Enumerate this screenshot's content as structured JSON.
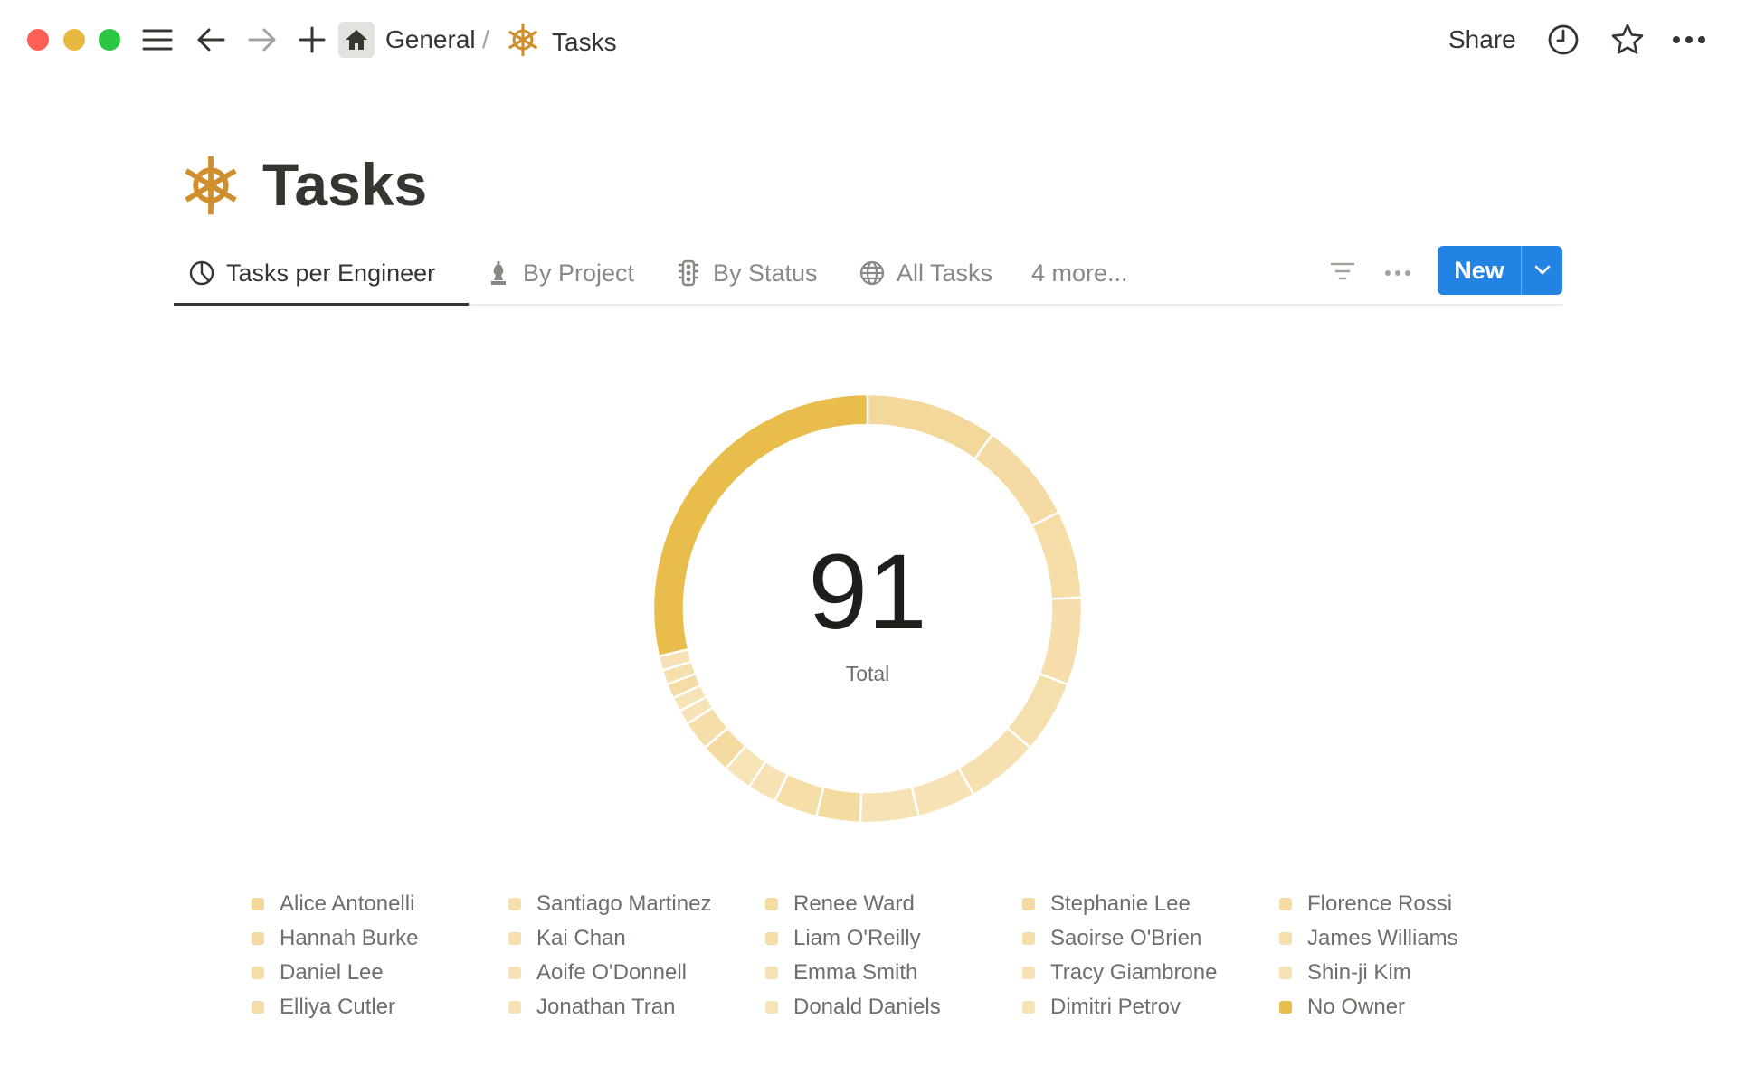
{
  "window": {
    "traffic_lights": {
      "close": "#fe5f57",
      "minimize": "#e8b740",
      "maximize": "#29c840"
    }
  },
  "topbar": {
    "breadcrumb": [
      {
        "label": "General",
        "icon": "home-icon"
      },
      {
        "label": "Tasks",
        "icon": "ship-wheel-icon"
      }
    ],
    "separator": "/",
    "share_label": "Share",
    "icons": [
      "menu-icon",
      "back-arrow-icon",
      "forward-arrow-icon",
      "plus-icon",
      "clock-icon",
      "star-icon",
      "more-icon"
    ]
  },
  "page": {
    "title": "Tasks",
    "icon": "ship-wheel-icon",
    "icon_color": "#cf8f2e"
  },
  "tabs": [
    {
      "label": "Tasks per Engineer",
      "icon": "pie-chart-icon",
      "active": true
    },
    {
      "label": "By Project",
      "icon": "chess-bishop-icon",
      "active": false
    },
    {
      "label": "By Status",
      "icon": "traffic-light-icon",
      "active": false
    },
    {
      "label": "All Tasks",
      "icon": "globe-icon",
      "active": false
    },
    {
      "label": "4 more...",
      "active": false
    }
  ],
  "toolbar": {
    "new_label": "New",
    "accent": "#2383e2"
  },
  "chart_data": {
    "type": "pie",
    "variant": "donut",
    "center_value": "91",
    "center_label": "Total",
    "legend_position": "bottom",
    "categories": [
      "Alice Antonelli",
      "Hannah Burke",
      "Daniel Lee",
      "Elliya Cutler",
      "Santiago Martinez",
      "Kai Chan",
      "Aoife O'Donnell",
      "Jonathan Tran",
      "Renee Ward",
      "Liam O'Reilly",
      "Emma Smith",
      "Donald Daniels",
      "Stephanie Lee",
      "Saoirse O'Brien",
      "Tracy Giambrone",
      "Dimitri Petrov",
      "Florence Rossi",
      "James Williams",
      "Shin-ji Kim",
      "No Owner"
    ],
    "values": [
      9,
      7,
      6,
      6,
      5,
      5,
      4,
      4,
      3,
      3,
      2,
      2,
      2,
      2,
      1,
      1,
      1,
      1,
      1,
      26
    ],
    "colors": [
      "#f3d89c",
      "#f4dba3",
      "#f5dda8",
      "#f5deab",
      "#f5dfad",
      "#f6e0b0",
      "#f6e2b4",
      "#f6e2b5",
      "#f4db9f",
      "#f5dea8",
      "#f6e2b4",
      "#f6e3b6",
      "#f4dba2",
      "#f5dea9",
      "#f6e2b4",
      "#f6e3b6",
      "#f5dca4",
      "#f5dfac",
      "#f6e2b4",
      "#e9bd4c"
    ]
  }
}
